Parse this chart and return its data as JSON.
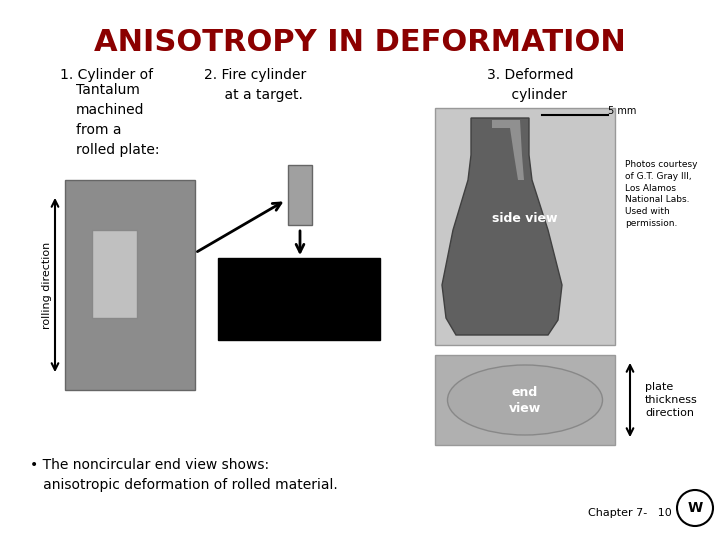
{
  "title": "ANISOTROPY IN DEFORMATION",
  "title_color": "#8B0000",
  "title_fontsize": 22,
  "bg_color": "#FFFFFF",
  "label1_line1": "1. Cylinder of",
  "label1_rest": "Tantalum\nmachined\nfrom a\nrolled plate:",
  "label2": "2. Fire cylinder\n    at a target.",
  "label3": "3. Deformed\n    cylinder",
  "rolling_direction": "rolling direction",
  "side_view": "side view",
  "end_view": "end\nview",
  "plate_thickness": "plate\nthickness\ndirection",
  "photos_credit": "Photos courtesy\nof G.T. Gray III,\nLos Alamos\nNational Labs.\nUsed with\npermission.",
  "bullet": "• The noncircular end view shows:\n   anisotropic deformation of rolled material.",
  "chapter": "Chapter 7-   10"
}
